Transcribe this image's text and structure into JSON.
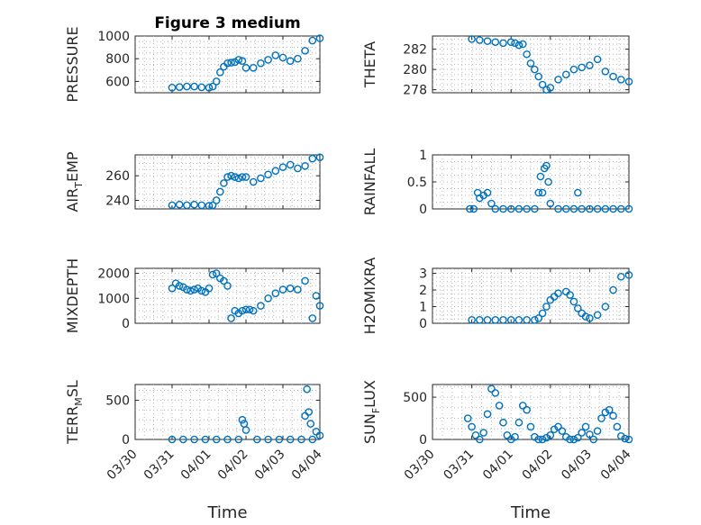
{
  "figure": {
    "title": "Figure 3 medium",
    "marker_color": "#0072BD",
    "axis_color": "#262626"
  },
  "chart_data": [
    {
      "type": "scatter",
      "title": "Figure 3 medium",
      "ylabel": "PRESSURE",
      "xlabel": "",
      "xlim": [
        0,
        5
      ],
      "ylim": [
        500,
        1000
      ],
      "yticks": [
        600,
        800,
        1000
      ],
      "xticks": [
        0,
        1,
        2,
        3,
        4,
        5
      ],
      "x": [
        1.0,
        1.2,
        1.4,
        1.6,
        1.8,
        2.0,
        2.1,
        2.2,
        2.3,
        2.4,
        2.5,
        2.6,
        2.7,
        2.8,
        2.9,
        3.0,
        3.2,
        3.4,
        3.6,
        3.8,
        4.0,
        4.2,
        4.4,
        4.6,
        4.8,
        5.0
      ],
      "y": [
        545,
        550,
        555,
        555,
        548,
        545,
        555,
        600,
        680,
        730,
        760,
        765,
        770,
        790,
        780,
        720,
        720,
        760,
        790,
        830,
        810,
        780,
        800,
        870,
        960,
        980
      ]
    },
    {
      "type": "scatter",
      "ylabel": "THETA",
      "xlim": [
        0,
        5
      ],
      "ylim": [
        277.7,
        283.3
      ],
      "yticks": [
        278,
        280,
        282
      ],
      "xticks": [
        0,
        1,
        2,
        3,
        4,
        5
      ],
      "x": [
        1.0,
        1.2,
        1.4,
        1.6,
        1.8,
        2.0,
        2.1,
        2.2,
        2.3,
        2.4,
        2.5,
        2.6,
        2.7,
        2.8,
        2.9,
        3.0,
        3.2,
        3.4,
        3.6,
        3.8,
        4.0,
        4.2,
        4.4,
        4.6,
        4.8,
        5.0
      ],
      "y": [
        283.0,
        282.9,
        282.8,
        282.7,
        282.6,
        282.7,
        282.6,
        282.4,
        282.5,
        281.5,
        280.6,
        280.0,
        279.3,
        278.5,
        278.0,
        278.2,
        279.0,
        279.5,
        280.0,
        280.2,
        280.4,
        281.0,
        279.8,
        279.3,
        279.0,
        278.8
      ]
    },
    {
      "type": "scatter",
      "ylabel": "AIR_TEMP",
      "xlim": [
        0,
        5
      ],
      "ylim": [
        233,
        277
      ],
      "yticks": [
        240,
        260
      ],
      "xticks": [
        0,
        1,
        2,
        3,
        4,
        5
      ],
      "x": [
        1.0,
        1.2,
        1.4,
        1.6,
        1.8,
        2.0,
        2.1,
        2.2,
        2.3,
        2.4,
        2.5,
        2.6,
        2.7,
        2.8,
        2.9,
        3.0,
        3.2,
        3.4,
        3.6,
        3.8,
        4.0,
        4.2,
        4.4,
        4.6,
        4.8,
        5.0
      ],
      "y": [
        236,
        236.5,
        236,
        236.5,
        236,
        235.5,
        236,
        240,
        247,
        254,
        259,
        260,
        259,
        258,
        259,
        259,
        255,
        258,
        261,
        264,
        267,
        269,
        266,
        268,
        274,
        275
      ]
    },
    {
      "type": "scatter",
      "ylabel": "RAINFALL",
      "xlim": [
        0,
        5
      ],
      "ylim": [
        0,
        1
      ],
      "yticks": [
        0,
        0.5,
        1
      ],
      "xticks": [
        0,
        1,
        2,
        3,
        4,
        5
      ],
      "x": [
        0.95,
        1.05,
        1.15,
        1.2,
        1.3,
        1.4,
        1.5,
        1.6,
        1.8,
        2.0,
        2.2,
        2.4,
        2.6,
        2.7,
        2.75,
        2.8,
        2.85,
        2.9,
        2.95,
        3.0,
        3.2,
        3.4,
        3.6,
        3.7,
        3.8,
        4.0,
        4.2,
        4.4,
        4.6,
        4.8,
        5.0
      ],
      "y": [
        0,
        0,
        0.3,
        0.2,
        0.25,
        0.3,
        0.1,
        0,
        0,
        0,
        0,
        0,
        0,
        0.3,
        0.6,
        0.3,
        0.75,
        0.8,
        0.5,
        0.1,
        0,
        0,
        0,
        0.3,
        0,
        0,
        0,
        0,
        0,
        0,
        0
      ]
    },
    {
      "type": "scatter",
      "ylabel": "MIXDEPTH",
      "xlim": [
        0,
        5
      ],
      "ylim": [
        0,
        2200
      ],
      "yticks": [
        0,
        1000,
        2000
      ],
      "xticks": [
        0,
        1,
        2,
        3,
        4,
        5
      ],
      "x": [
        1.0,
        1.1,
        1.2,
        1.3,
        1.4,
        1.5,
        1.6,
        1.7,
        1.8,
        1.9,
        2.0,
        2.1,
        2.2,
        2.3,
        2.4,
        2.5,
        2.6,
        2.7,
        2.8,
        2.9,
        3.0,
        3.1,
        3.2,
        3.4,
        3.6,
        3.8,
        4.0,
        4.2,
        4.4,
        4.6,
        4.8,
        4.9,
        5.0
      ],
      "y": [
        1400,
        1600,
        1500,
        1450,
        1350,
        1300,
        1350,
        1400,
        1300,
        1250,
        1400,
        1950,
        2000,
        1800,
        1700,
        1500,
        200,
        500,
        400,
        500,
        550,
        550,
        500,
        700,
        1000,
        1200,
        1350,
        1400,
        1350,
        1700,
        200,
        1100,
        700
      ]
    },
    {
      "type": "scatter",
      "ylabel": "H2OMIXRA",
      "xlim": [
        0,
        5
      ],
      "ylim": [
        0,
        3.3
      ],
      "yticks": [
        0,
        1,
        2,
        3
      ],
      "xticks": [
        0,
        1,
        2,
        3,
        4,
        5
      ],
      "x": [
        1.0,
        1.2,
        1.4,
        1.6,
        1.8,
        2.0,
        2.2,
        2.4,
        2.6,
        2.7,
        2.8,
        2.9,
        3.0,
        3.1,
        3.2,
        3.4,
        3.5,
        3.6,
        3.7,
        3.8,
        3.9,
        4.0,
        4.2,
        4.4,
        4.6,
        4.8,
        5.0
      ],
      "y": [
        0.2,
        0.2,
        0.2,
        0.2,
        0.2,
        0.2,
        0.2,
        0.2,
        0.2,
        0.3,
        0.6,
        1.0,
        1.4,
        1.6,
        1.8,
        1.9,
        1.7,
        1.3,
        0.9,
        0.6,
        0.4,
        0.3,
        0.5,
        1.0,
        2.0,
        2.8,
        2.9
      ]
    },
    {
      "type": "scatter",
      "ylabel": "TERR_MSL",
      "xlabel": "Time",
      "xlim": [
        0,
        5
      ],
      "ylim": [
        0,
        700
      ],
      "yticks": [
        0,
        500
      ],
      "xticks": [
        0,
        1,
        2,
        3,
        4,
        5
      ],
      "xticklabels": [
        "03/30",
        "03/31",
        "04/01",
        "04/02",
        "04/03",
        "04/04"
      ],
      "x": [
        1.0,
        1.3,
        1.6,
        1.9,
        2.2,
        2.5,
        2.8,
        2.9,
        2.95,
        3.0,
        3.3,
        3.6,
        3.9,
        4.2,
        4.5,
        4.6,
        4.65,
        4.7,
        4.75,
        4.8,
        4.9,
        5.0
      ],
      "y": [
        0,
        0,
        0,
        0,
        0,
        0,
        0,
        250,
        200,
        120,
        0,
        0,
        0,
        0,
        0,
        300,
        640,
        350,
        200,
        0,
        100,
        50
      ]
    },
    {
      "type": "scatter",
      "ylabel": "SUN_FLUX",
      "xlabel": "Time",
      "xlim": [
        0,
        5
      ],
      "ylim": [
        0,
        650
      ],
      "yticks": [
        0,
        500
      ],
      "xticks": [
        0,
        1,
        2,
        3,
        4,
        5
      ],
      "xticklabels": [
        "03/30",
        "03/31",
        "04/01",
        "04/02",
        "04/03",
        "04/04"
      ],
      "x": [
        0.9,
        1.0,
        1.1,
        1.2,
        1.3,
        1.4,
        1.5,
        1.6,
        1.7,
        1.8,
        1.9,
        2.0,
        2.1,
        2.2,
        2.3,
        2.4,
        2.5,
        2.6,
        2.7,
        2.8,
        2.9,
        3.0,
        3.1,
        3.2,
        3.3,
        3.4,
        3.5,
        3.6,
        3.7,
        3.8,
        3.9,
        4.0,
        4.1,
        4.2,
        4.3,
        4.4,
        4.5,
        4.6,
        4.7,
        4.8,
        4.9,
        5.0
      ],
      "y": [
        250,
        150,
        50,
        0,
        80,
        300,
        600,
        550,
        400,
        200,
        50,
        0,
        30,
        200,
        400,
        350,
        150,
        30,
        0,
        0,
        20,
        50,
        120,
        150,
        100,
        30,
        0,
        0,
        20,
        80,
        150,
        60,
        0,
        100,
        250,
        320,
        350,
        280,
        150,
        40,
        10,
        0
      ]
    }
  ]
}
